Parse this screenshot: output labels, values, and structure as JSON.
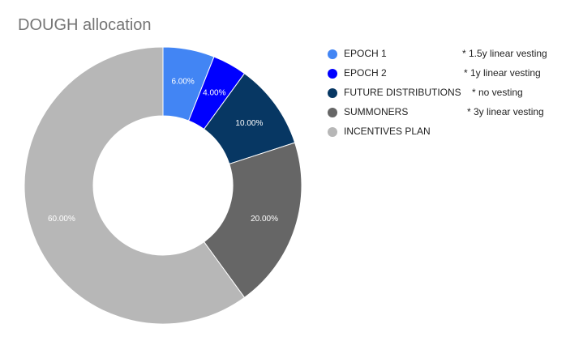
{
  "chart_data": {
    "type": "pie",
    "title": "DOUGH allocation",
    "donut": true,
    "legend_position": "right",
    "slices": [
      {
        "label": "EPOCH 1",
        "value": 6,
        "value_label": "6.00%",
        "note": "* 1.5y linear vesting",
        "color": "#4285f4"
      },
      {
        "label": "EPOCH 2",
        "value": 4,
        "value_label": "4.00%",
        "note": "* 1y linear vesting",
        "color": "#0000ff"
      },
      {
        "label": "FUTURE DISTRIBUTIONS",
        "value": 10,
        "value_label": "10.00%",
        "note": "* no vesting",
        "color": "#073763"
      },
      {
        "label": "SUMMONERS",
        "value": 20,
        "value_label": "20.00%",
        "note": "* 3y linear vesting",
        "color": "#666666"
      },
      {
        "label": "INCENTIVES PLAN",
        "value": 60,
        "value_label": "60.00%",
        "note": "",
        "color": "#b7b7b7"
      }
    ]
  }
}
